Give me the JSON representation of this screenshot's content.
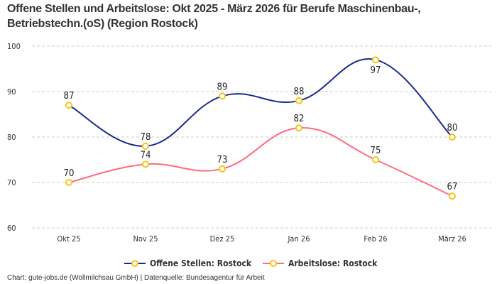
{
  "chart_data": {
    "type": "line",
    "title": "Offene Stellen und Arbeitslose: Okt 2025 - März 2026 für Berufe Maschinenbau-, Betriebstechn.(oS) (Region Rostock)",
    "categories": [
      "Okt 25",
      "Nov 25",
      "Dez 25",
      "Jan 26",
      "Feb 26",
      "März 26"
    ],
    "yticks": [
      60,
      70,
      80,
      90,
      100
    ],
    "ylim": [
      60,
      100
    ],
    "grid": true,
    "legend_position": "bottom",
    "series": [
      {
        "name": "Offene Stellen: Rostock",
        "values": [
          87,
          78,
          89,
          88,
          97,
          80
        ],
        "color": "#1a2a8c"
      },
      {
        "name": "Arbeitslose: Rostock",
        "values": [
          70,
          74,
          73,
          82,
          75,
          67
        ],
        "color": "#ff6b81"
      }
    ],
    "marker_color": "#f5c518"
  },
  "credit": "Chart: gute-jobs.de (Wollmilchsau GmbH) | Datenquelle: Bundesagentur für Arbeit"
}
